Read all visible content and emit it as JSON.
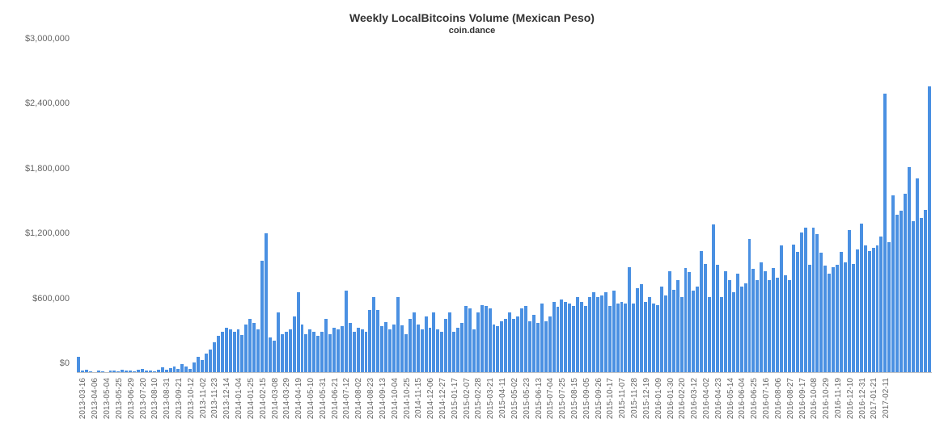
{
  "chart": {
    "type": "bar",
    "title": "Weekly LocalBitcoins Volume (Mexican Peso)",
    "subtitle": "coin.dance",
    "title_fontsize": 14,
    "subtitle_fontsize": 11,
    "title_color": "#333333",
    "background_color": "#ffffff",
    "bar_color": "#4a90e2",
    "axis_text_color": "#666666",
    "ylabel_prefix": "$",
    "ylim": [
      0,
      3000000
    ],
    "ytick_step": 600000,
    "yticks": [
      "$0",
      "$600,000",
      "$1,200,000",
      "$1,800,000",
      "$2,400,000",
      "$3,000,000"
    ],
    "x_labels": [
      "2013-03-16",
      "2013-04-06",
      "2013-05-04",
      "2013-05-25",
      "2013-06-29",
      "2013-07-20",
      "2013-08-10",
      "2013-08-31",
      "2013-09-21",
      "2013-10-12",
      "2013-11-02",
      "2013-11-23",
      "2013-12-14",
      "2014-01-04",
      "2014-01-25",
      "2014-02-15",
      "2014-03-08",
      "2014-03-29",
      "2014-04-19",
      "2014-05-10",
      "2014-05-31",
      "2014-06-21",
      "2014-07-12",
      "2014-08-02",
      "2014-08-23",
      "2014-09-13",
      "2014-10-04",
      "2014-10-25",
      "2014-11-15",
      "2014-12-06",
      "2014-12-27",
      "2015-01-17",
      "2015-02-07",
      "2015-02-28",
      "2015-03-21",
      "2015-04-11",
      "2015-05-02",
      "2015-05-23",
      "2015-06-13",
      "2015-07-04",
      "2015-07-25",
      "2015-08-15",
      "2015-09-05",
      "2015-09-26",
      "2015-10-17",
      "2015-11-07",
      "2015-11-28",
      "2015-12-19",
      "2016-01-09",
      "2016-01-30",
      "2016-02-20",
      "2016-03-12",
      "2016-04-02",
      "2016-04-23",
      "2016-05-14",
      "2016-06-04",
      "2016-06-25",
      "2016-07-16",
      "2016-08-06",
      "2016-08-27",
      "2016-09-17",
      "2016-10-08",
      "2016-10-29",
      "2016-11-19",
      "2016-12-10",
      "2016-12-31",
      "2017-01-21",
      "2017-02-11"
    ],
    "x_label_every": 3,
    "values": [
      150000,
      20000,
      30000,
      15000,
      10000,
      20000,
      15000,
      10000,
      25000,
      20000,
      15000,
      30000,
      25000,
      20000,
      15000,
      30000,
      35000,
      20000,
      25000,
      15000,
      30000,
      50000,
      30000,
      45000,
      60000,
      40000,
      80000,
      60000,
      40000,
      100000,
      150000,
      120000,
      180000,
      220000,
      280000,
      340000,
      380000,
      420000,
      400000,
      380000,
      400000,
      350000,
      450000,
      500000,
      460000,
      400000,
      1040000,
      1290000,
      330000,
      300000,
      560000,
      360000,
      380000,
      400000,
      520000,
      750000,
      450000,
      360000,
      400000,
      380000,
      340000,
      380000,
      500000,
      360000,
      420000,
      400000,
      430000,
      760000,
      460000,
      380000,
      420000,
      400000,
      380000,
      580000,
      700000,
      580000,
      430000,
      470000,
      400000,
      450000,
      700000,
      440000,
      360000,
      500000,
      560000,
      450000,
      400000,
      520000,
      420000,
      560000,
      400000,
      380000,
      500000,
      560000,
      380000,
      420000,
      460000,
      620000,
      600000,
      400000,
      560000,
      630000,
      620000,
      600000,
      450000,
      430000,
      480000,
      500000,
      560000,
      500000,
      520000,
      600000,
      620000,
      480000,
      540000,
      460000,
      640000,
      480000,
      520000,
      660000,
      610000,
      680000,
      660000,
      640000,
      620000,
      700000,
      660000,
      620000,
      700000,
      750000,
      700000,
      720000,
      750000,
      620000,
      760000,
      640000,
      660000,
      640000,
      980000,
      640000,
      780000,
      820000,
      660000,
      700000,
      640000,
      630000,
      800000,
      720000,
      940000,
      770000,
      860000,
      700000,
      970000,
      930000,
      760000,
      800000,
      1130000,
      1010000,
      700000,
      1370000,
      1000000,
      700000,
      940000,
      860000,
      750000,
      920000,
      800000,
      830000,
      1240000,
      960000,
      860000,
      1020000,
      940000,
      860000,
      970000,
      880000,
      1180000,
      900000,
      860000,
      1190000,
      1120000,
      1300000,
      1340000,
      1000000,
      1340000,
      1280000,
      1110000,
      990000,
      920000,
      980000,
      1000000,
      1120000,
      1020000,
      1320000,
      1010000,
      1140000,
      1380000,
      1180000,
      1130000,
      1160000,
      1180000,
      1260000,
      2580000,
      1210000,
      1640000,
      1460000,
      1500000,
      1660000,
      1900000,
      1400000,
      1800000,
      1430000,
      1510000,
      2650000
    ]
  }
}
